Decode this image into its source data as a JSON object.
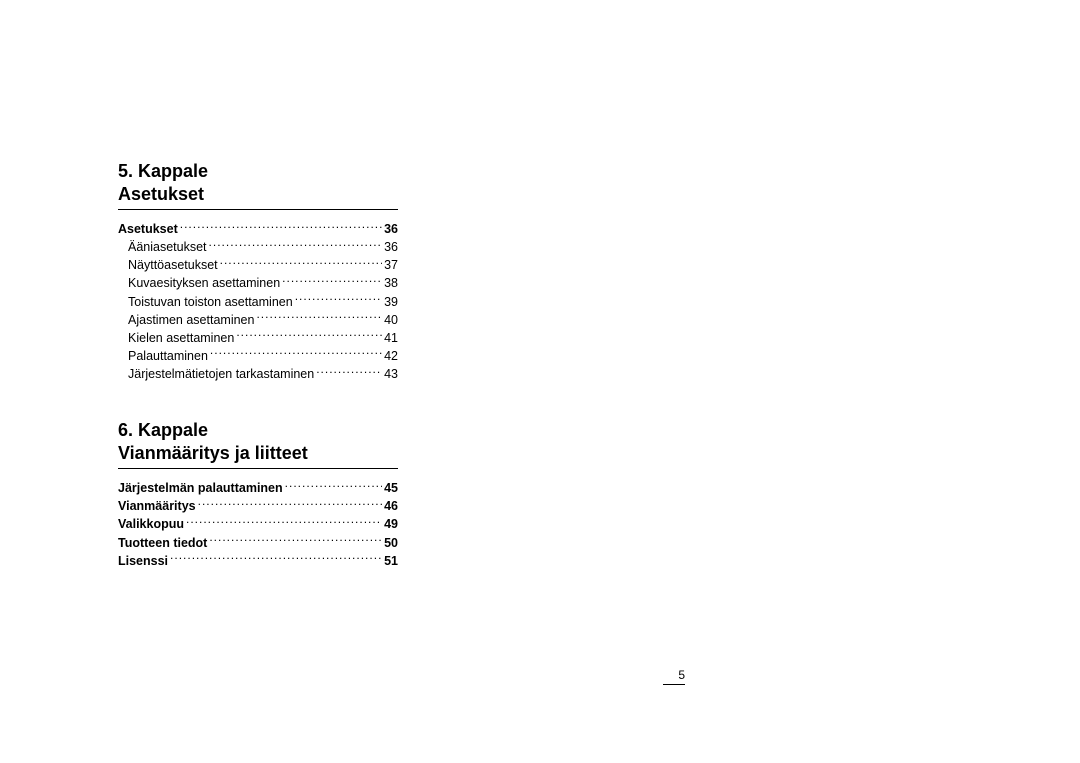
{
  "page_number": "5",
  "chapters": [
    {
      "heading_line1": "5. Kappale",
      "heading_line2": "Asetukset",
      "entries": [
        {
          "label": "Asetukset",
          "page": "36",
          "bold": true,
          "indent": false
        },
        {
          "label": "Ääniasetukset ",
          "page": "36",
          "bold": false,
          "indent": true
        },
        {
          "label": "Näyttöasetukset",
          "page": "37",
          "bold": false,
          "indent": true
        },
        {
          "label": "Kuvaesityksen asettaminen ",
          "page": "38",
          "bold": false,
          "indent": true
        },
        {
          "label": "Toistuvan toiston asettaminen",
          "page": "39",
          "bold": false,
          "indent": true
        },
        {
          "label": "Ajastimen asettaminen ",
          "page": "40",
          "bold": false,
          "indent": true
        },
        {
          "label": "Kielen asettaminen ",
          "page": "41",
          "bold": false,
          "indent": true
        },
        {
          "label": "Palauttaminen",
          "page": "42",
          "bold": false,
          "indent": true
        },
        {
          "label": "Järjestelmätietojen tarkastaminen",
          "page": "43",
          "bold": false,
          "indent": true
        }
      ]
    },
    {
      "heading_line1": "6. Kappale",
      "heading_line2": "Vianmääritys ja liitteet",
      "entries": [
        {
          "label": "Järjestelmän palauttaminen",
          "page": "45",
          "bold": true,
          "indent": false
        },
        {
          "label": "Vianmääritys",
          "page": "46",
          "bold": true,
          "indent": false
        },
        {
          "label": "Valikkopuu ",
          "page": "49",
          "bold": true,
          "indent": false
        },
        {
          "label": "Tuotteen tiedot ",
          "page": "50",
          "bold": true,
          "indent": false
        },
        {
          "label": "Lisenssi",
          "page": "51",
          "bold": true,
          "indent": false
        }
      ]
    }
  ]
}
